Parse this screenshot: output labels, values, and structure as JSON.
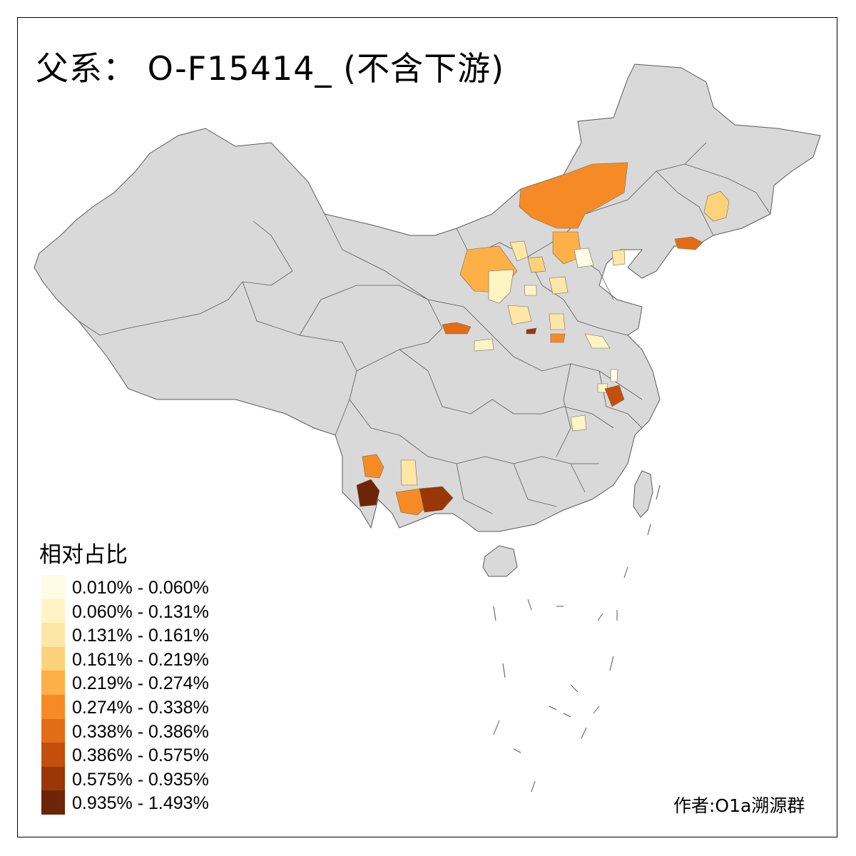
{
  "title": "父系： O-F15414_ (不含下游)",
  "legend": {
    "title": "相对占比",
    "items": [
      {
        "label": "0.010% - 0.060%",
        "color": "#fffce6"
      },
      {
        "label": "0.060% - 0.131%",
        "color": "#fff4c4"
      },
      {
        "label": "0.131% - 0.161%",
        "color": "#fee7a6"
      },
      {
        "label": "0.161% - 0.219%",
        "color": "#fdd27a"
      },
      {
        "label": "0.219% - 0.274%",
        "color": "#fdb045"
      },
      {
        "label": "0.274% - 0.338%",
        "color": "#f68b26"
      },
      {
        "label": "0.338% - 0.386%",
        "color": "#e36d14"
      },
      {
        "label": "0.386% - 0.575%",
        "color": "#c34f0a"
      },
      {
        "label": "0.575% - 0.935%",
        "color": "#9a3706"
      },
      {
        "label": "0.935% - 1.493%",
        "color": "#6d2508"
      }
    ]
  },
  "author": "作者:O1a溯源群",
  "colors": {
    "land": "#d9d9d9",
    "border": "#5a5a5a",
    "background": "#ffffff"
  }
}
